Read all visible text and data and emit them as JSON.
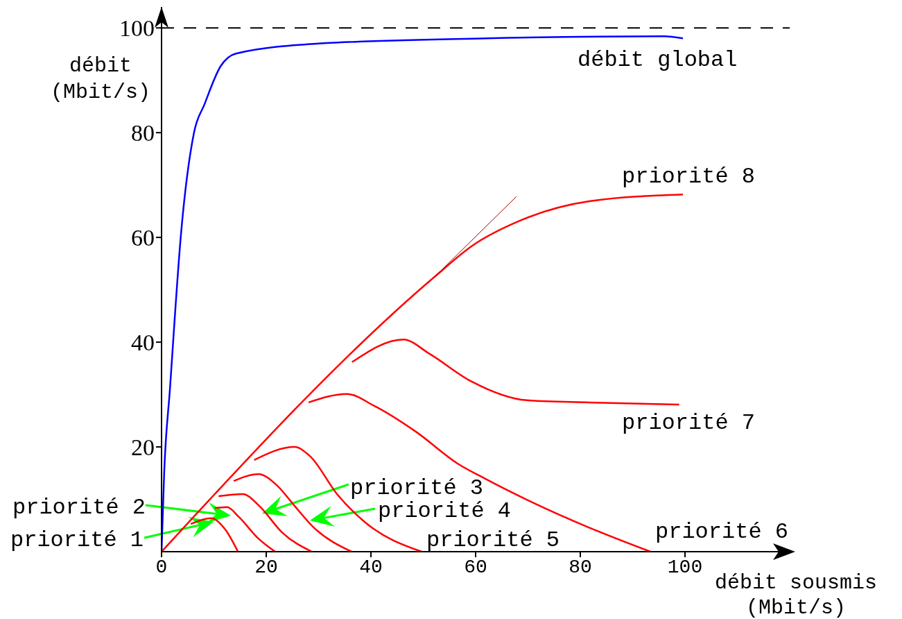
{
  "chart_data": {
    "type": "line",
    "xlabel": "débit sousmis\n(Mbit/s)",
    "ylabel": "débit\n(Mbit/s)",
    "xlim": [
      0,
      120
    ],
    "ylim": [
      0,
      104
    ],
    "xticks": [
      0,
      20,
      40,
      60,
      80,
      100
    ],
    "yticks": [
      20,
      40,
      60,
      80,
      100
    ],
    "marker": "none",
    "line_style": "solid",
    "ref_lines": [
      {
        "axis": "y",
        "value": 100,
        "color": "#000000",
        "line_style": "dashed"
      }
    ],
    "series": [
      {
        "name": "débit global",
        "color": "#0000ff",
        "x": [
          0,
          0.5,
          1.6,
          3.8,
          6.2,
          8.2,
          11.3,
          14.2,
          30,
          62,
          96,
          99.6
        ],
        "values": [
          0,
          15,
          31,
          61.6,
          80,
          85.4,
          92.7,
          95.1,
          97,
          98,
          98.4,
          98
        ]
      },
      {
        "name": "priorité 1",
        "color": "#ff0000",
        "x": [
          5.6,
          9.5,
          12.2,
          14.6
        ],
        "values": [
          5.3,
          6.4,
          4.2,
          0
        ]
      },
      {
        "name": "priorité 2",
        "color": "#ff0000",
        "x": [
          10.2,
          12.5,
          14.8,
          18.4,
          21.7
        ],
        "values": [
          8.3,
          8.5,
          6.6,
          2.6,
          0
        ]
      },
      {
        "name": "priorité 3",
        "color": "#ff0000",
        "x": [
          10.9,
          15.5,
          18.8,
          23,
          28.7
        ],
        "values": [
          10.6,
          11,
          8.6,
          3.7,
          0
        ]
      },
      {
        "name": "priorité 4",
        "color": "#ff0000",
        "x": [
          13.8,
          18.5,
          22.1,
          25.2,
          29.1,
          36.3
        ],
        "values": [
          13.5,
          14.8,
          12.6,
          9,
          4.6,
          0
        ]
      },
      {
        "name": "priorité 5",
        "color": "#ff0000",
        "x": [
          17.7,
          25.4,
          28.3,
          33.6,
          38.9,
          49.7
        ],
        "values": [
          17.5,
          20,
          18.3,
          10.9,
          5.6,
          0
        ]
      },
      {
        "name": "priorité 6",
        "color": "#ff0000",
        "x": [
          28.1,
          35.4,
          40.7,
          48.6,
          56.6,
          61.9,
          71.1,
          81.7,
          93.4
        ],
        "values": [
          28.5,
          30.1,
          27.8,
          22.9,
          16.8,
          13.9,
          9.3,
          4.6,
          0
        ]
      },
      {
        "name": "priorité 7",
        "color": "#ff0000",
        "x": [
          36.4,
          46.2,
          51.3,
          59.2,
          69.8,
          81.7,
          98.9
        ],
        "values": [
          36.2,
          40.5,
          37.7,
          32.5,
          28.9,
          28.5,
          28.1
        ]
      },
      {
        "name": "priorité 8",
        "color": "#ff0000",
        "x": [
          0,
          52.3,
          59.2,
          68.5,
          81.7,
          99.6
        ],
        "values": [
          0,
          52.6,
          58.3,
          63.2,
          66.9,
          68.2
        ]
      },
      {
        "color": "#a00000",
        "x": [
          52.3,
          67.8
        ],
        "values": [
          52.6,
          67.8
        ]
      }
    ]
  }
}
